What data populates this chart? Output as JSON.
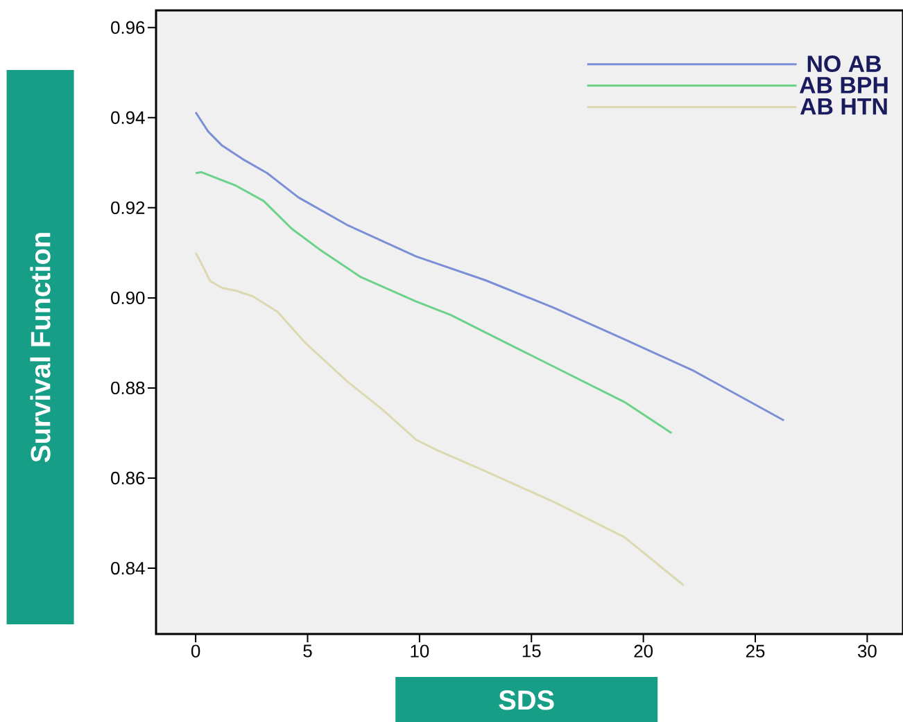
{
  "chart_data": {
    "type": "line",
    "xlabel": "SDS",
    "ylabel": "Survival Function",
    "xlim": [
      -1.77,
      31.6
    ],
    "ylim": [
      0.8254,
      0.9638
    ],
    "xticks": [
      0,
      5,
      10,
      15,
      20,
      25,
      30
    ],
    "yticks": [
      {
        "value": 0.84,
        "label": "0.84"
      },
      {
        "value": 0.86,
        "label": "0.86"
      },
      {
        "value": 0.88,
        "label": "0.88"
      },
      {
        "value": 0.9,
        "label": "0.90"
      },
      {
        "value": 0.92,
        "label": "0.92"
      },
      {
        "value": 0.94,
        "label": "0.94"
      },
      {
        "value": 0.96,
        "label": "0.96"
      }
    ],
    "legend": "top right",
    "grid": false,
    "line_style": "solid",
    "series": [
      {
        "name": "NO AB",
        "color": "#7b8fd6",
        "x": [
          0,
          0.56,
          1.18,
          2.1,
          3.19,
          4.59,
          6.76,
          9.85,
          12.95,
          16.05,
          19.15,
          22.25,
          26.28
        ],
        "values": [
          0.9412,
          0.9369,
          0.9338,
          0.9308,
          0.9277,
          0.9223,
          0.9162,
          0.9092,
          0.9039,
          0.8977,
          0.8908,
          0.8838,
          0.8728
        ]
      },
      {
        "name": "AB BPH",
        "color": "#6cd28a",
        "x": [
          0,
          0.25,
          1.8,
          3.04,
          4.28,
          5.52,
          7.38,
          9.85,
          11.4,
          12.95,
          16.05,
          19.15,
          21.26
        ],
        "values": [
          0.9277,
          0.9279,
          0.9249,
          0.9215,
          0.9154,
          0.9108,
          0.9046,
          0.8992,
          0.8962,
          0.8923,
          0.8846,
          0.8769,
          0.87
        ]
      },
      {
        "name": "AB HTN",
        "color": "#dcd8b0",
        "x": [
          0,
          0.25,
          0.65,
          1.18,
          1.8,
          2.57,
          3.66,
          4.9,
          6.76,
          8.3,
          9.85,
          10.78,
          12.95,
          16.05,
          19.15,
          21.8
        ],
        "values": [
          0.91,
          0.9077,
          0.9037,
          0.9022,
          0.9016,
          0.9003,
          0.8969,
          0.89,
          0.8815,
          0.8754,
          0.8685,
          0.8662,
          0.8615,
          0.8546,
          0.8469,
          0.8362
        ]
      }
    ]
  }
}
